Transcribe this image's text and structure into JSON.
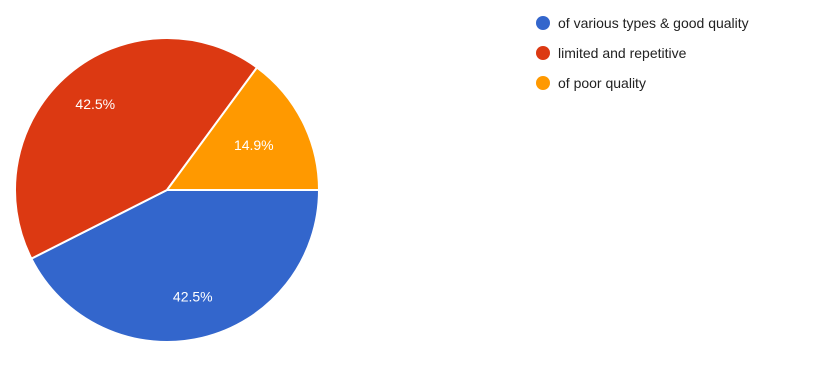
{
  "chart_data": {
    "type": "pie",
    "start_angle_deg": 0,
    "slices": [
      {
        "label": "of various types & good quality",
        "value": 42.5,
        "display_value": "42.5%",
        "color": "#3366cc"
      },
      {
        "label": "limited and repetitive",
        "value": 42.5,
        "display_value": "42.5%",
        "color": "#dc3912"
      },
      {
        "label": "of poor quality",
        "value": 14.9,
        "display_value": "14.9%",
        "color": "#ff9900"
      }
    ],
    "legend_position": "top-right"
  }
}
